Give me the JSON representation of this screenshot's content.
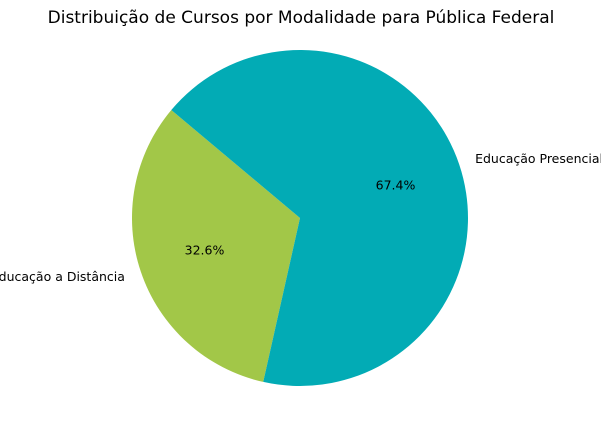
{
  "chart_data": {
    "type": "pie",
    "title": "Distribuição de Cursos por Modalidade para Pública Federal",
    "slices": [
      {
        "label": "Educação a Distância",
        "value": 32.6,
        "pct_label": "32.6%",
        "color": "#a2c748"
      },
      {
        "label": "Educação Presencial",
        "value": 67.4,
        "pct_label": "67.4%",
        "color": "#02abb5"
      }
    ],
    "start_angle_deg": 140,
    "direction": "counterclockwise",
    "legend": "none"
  }
}
